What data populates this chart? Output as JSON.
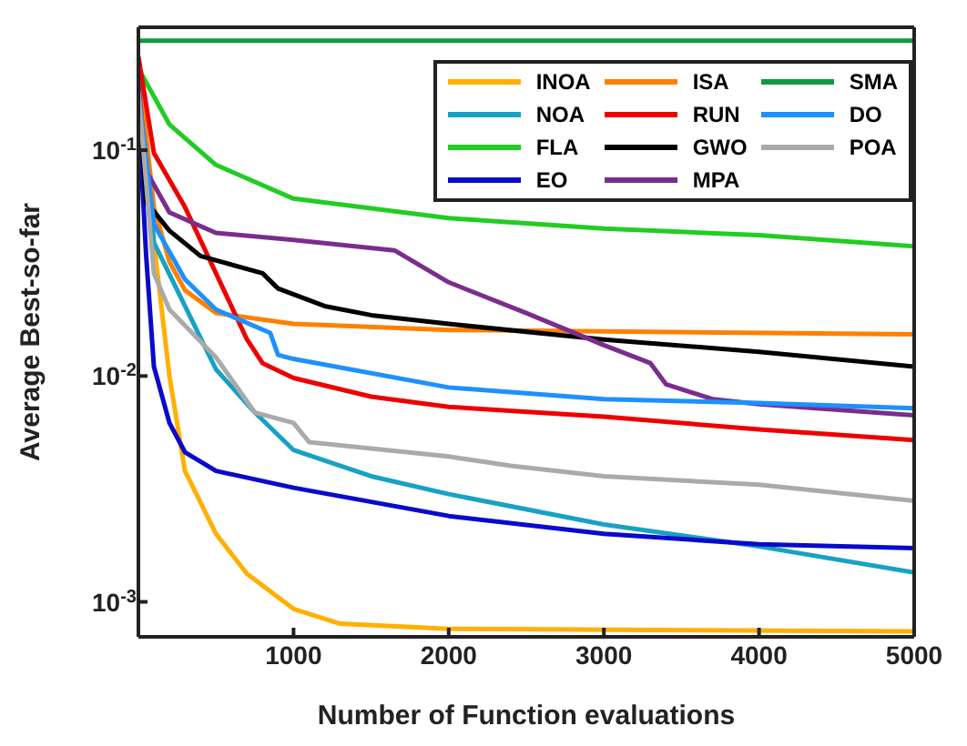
{
  "chart_data": {
    "type": "line",
    "xlabel": "Number of Function evaluations",
    "ylabel": "Average Best-so-far",
    "log": "y",
    "xlim": [
      0,
      5000
    ],
    "xticks": [
      1000,
      2000,
      3000,
      4000,
      5000
    ],
    "ylim": [
      0.0007,
      0.35
    ],
    "yticks": [
      {
        "value": 0.001,
        "label": "10$^{-3}$"
      },
      {
        "value": 0.01,
        "label": "10$^{-2}$"
      },
      {
        "value": 0.1,
        "label": "10$^{-1}$"
      }
    ],
    "legend": "top right",
    "marker": "none",
    "line_style": "solid",
    "series": [
      {
        "name": "INOA",
        "color": "#ffb000",
        "x": [
          0,
          100,
          200,
          300,
          500,
          700,
          1000,
          1300,
          2000,
          5000
        ],
        "values": [
          0.24,
          0.039,
          0.01,
          0.0038,
          0.002,
          0.00133,
          0.00093,
          0.0008,
          0.00076,
          0.00074
        ]
      },
      {
        "name": "NOA",
        "color": "#17a2c4",
        "x": [
          0,
          100,
          250,
          500,
          750,
          1000,
          1500,
          2000,
          3000,
          4000,
          5000
        ],
        "values": [
          0.19,
          0.039,
          0.024,
          0.0107,
          0.0069,
          0.0047,
          0.0036,
          0.003,
          0.0022,
          0.00176,
          0.00135
        ]
      },
      {
        "name": "FLA",
        "color": "#22cc22",
        "x": [
          0,
          200,
          500,
          1000,
          2000,
          3000,
          4000,
          5000
        ],
        "values": [
          0.23,
          0.13,
          0.086,
          0.061,
          0.05,
          0.045,
          0.042,
          0.0375
        ]
      },
      {
        "name": "EO",
        "color": "#0a0acc",
        "x": [
          0,
          50,
          100,
          200,
          300,
          500,
          1000,
          2000,
          3000,
          4000,
          5000
        ],
        "values": [
          0.148,
          0.034,
          0.011,
          0.0062,
          0.0046,
          0.0038,
          0.0032,
          0.0024,
          0.002,
          0.0018,
          0.00173
        ]
      },
      {
        "name": "ISA",
        "color": "#ff8000",
        "x": [
          0,
          100,
          200,
          300,
          500,
          1000,
          2000,
          5000
        ],
        "values": [
          0.24,
          0.056,
          0.032,
          0.024,
          0.019,
          0.017,
          0.016,
          0.0153
        ]
      },
      {
        "name": "RUN",
        "color": "#ee0000",
        "x": [
          0,
          100,
          300,
          500,
          700,
          800,
          1000,
          1500,
          2000,
          3000,
          4000,
          5000
        ],
        "values": [
          0.26,
          0.097,
          0.056,
          0.0285,
          0.0145,
          0.0114,
          0.0098,
          0.0081,
          0.0073,
          0.0066,
          0.0058,
          0.0052
        ]
      },
      {
        "name": "GWO",
        "color": "#000000",
        "x": [
          0,
          50,
          200,
          400,
          800,
          900,
          1200,
          1500,
          2000,
          3000,
          4000,
          5000
        ],
        "values": [
          0.18,
          0.059,
          0.044,
          0.034,
          0.0285,
          0.0244,
          0.0204,
          0.0186,
          0.017,
          0.0145,
          0.0128,
          0.011
        ]
      },
      {
        "name": "MPA",
        "color": "#7b2d8e",
        "x": [
          0,
          50,
          200,
          500,
          1000,
          1650,
          2000,
          2500,
          3000,
          3300,
          3400,
          3700,
          4000,
          5000
        ],
        "values": [
          0.2,
          0.081,
          0.053,
          0.043,
          0.04,
          0.036,
          0.026,
          0.019,
          0.0137,
          0.0114,
          0.0092,
          0.0079,
          0.0075,
          0.0067
        ]
      },
      {
        "name": "SMA",
        "color": "#119944",
        "x": [
          0,
          5000
        ],
        "values": [
          0.305,
          0.305
        ]
      },
      {
        "name": "DO",
        "color": "#1e90ff",
        "x": [
          0,
          100,
          300,
          500,
          850,
          900,
          1000,
          2000,
          3000,
          4000,
          5000
        ],
        "values": [
          0.18,
          0.047,
          0.0268,
          0.0197,
          0.0155,
          0.0124,
          0.0119,
          0.0089,
          0.0079,
          0.0076,
          0.0072
        ]
      },
      {
        "name": "POA",
        "color": "#aaaaaa",
        "x": [
          0,
          100,
          200,
          500,
          750,
          1000,
          1100,
          2000,
          2400,
          3000,
          4000,
          5000
        ],
        "values": [
          0.18,
          0.0285,
          0.0197,
          0.0121,
          0.0069,
          0.0062,
          0.0051,
          0.0044,
          0.004,
          0.0036,
          0.0033,
          0.0028
        ]
      }
    ]
  }
}
